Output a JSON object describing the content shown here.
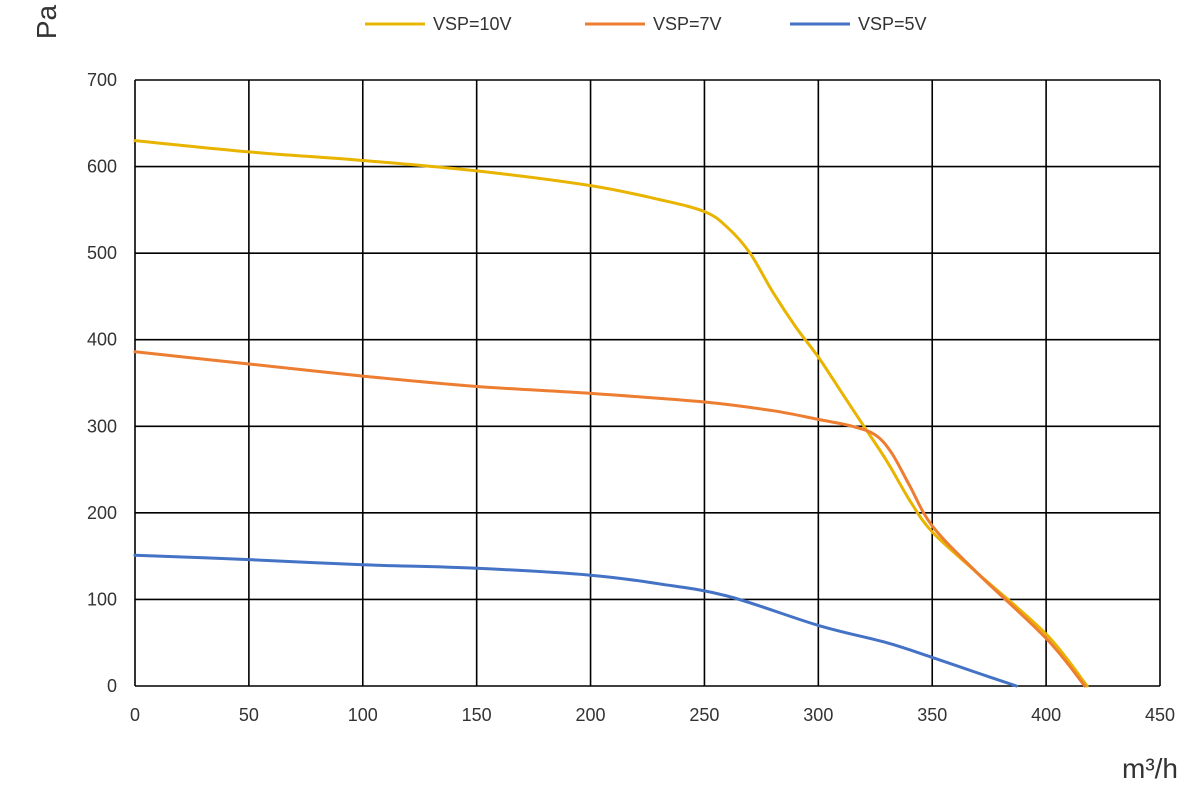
{
  "chart_data": {
    "type": "line",
    "title": "",
    "xlabel": "m³/h",
    "ylabel": "Pa",
    "xlim": [
      0,
      450
    ],
    "ylim": [
      0,
      700
    ],
    "x_ticks": [
      0,
      50,
      100,
      150,
      200,
      250,
      300,
      350,
      400,
      450
    ],
    "y_ticks": [
      0,
      100,
      200,
      300,
      400,
      500,
      600,
      700
    ],
    "grid": true,
    "legend_position": "top",
    "series": [
      {
        "name": "VSP=10V",
        "color": "#E8B400",
        "points": [
          [
            0,
            630
          ],
          [
            50,
            617
          ],
          [
            100,
            607
          ],
          [
            150,
            595
          ],
          [
            200,
            578
          ],
          [
            230,
            562
          ],
          [
            250,
            548
          ],
          [
            260,
            530
          ],
          [
            270,
            500
          ],
          [
            280,
            455
          ],
          [
            290,
            415
          ],
          [
            300,
            380
          ],
          [
            310,
            340
          ],
          [
            320,
            300
          ],
          [
            330,
            260
          ],
          [
            340,
            215
          ],
          [
            350,
            178
          ],
          [
            370,
            130
          ],
          [
            400,
            60
          ],
          [
            418,
            0
          ]
        ]
      },
      {
        "name": "VSP=7V",
        "color": "#ED7D31",
        "points": [
          [
            0,
            386
          ],
          [
            50,
            372
          ],
          [
            100,
            358
          ],
          [
            150,
            346
          ],
          [
            200,
            338
          ],
          [
            250,
            328
          ],
          [
            280,
            318
          ],
          [
            300,
            308
          ],
          [
            315,
            300
          ],
          [
            325,
            290
          ],
          [
            332,
            270
          ],
          [
            340,
            232
          ],
          [
            350,
            185
          ],
          [
            370,
            130
          ],
          [
            400,
            55
          ],
          [
            417,
            0
          ]
        ]
      },
      {
        "name": "VSP=5V",
        "color": "#4472C4",
        "points": [
          [
            0,
            151
          ],
          [
            50,
            146
          ],
          [
            100,
            140
          ],
          [
            150,
            136
          ],
          [
            200,
            128
          ],
          [
            230,
            118
          ],
          [
            260,
            104
          ],
          [
            300,
            70
          ],
          [
            330,
            50
          ],
          [
            350,
            33
          ],
          [
            370,
            15
          ],
          [
            387,
            0
          ]
        ]
      }
    ]
  }
}
